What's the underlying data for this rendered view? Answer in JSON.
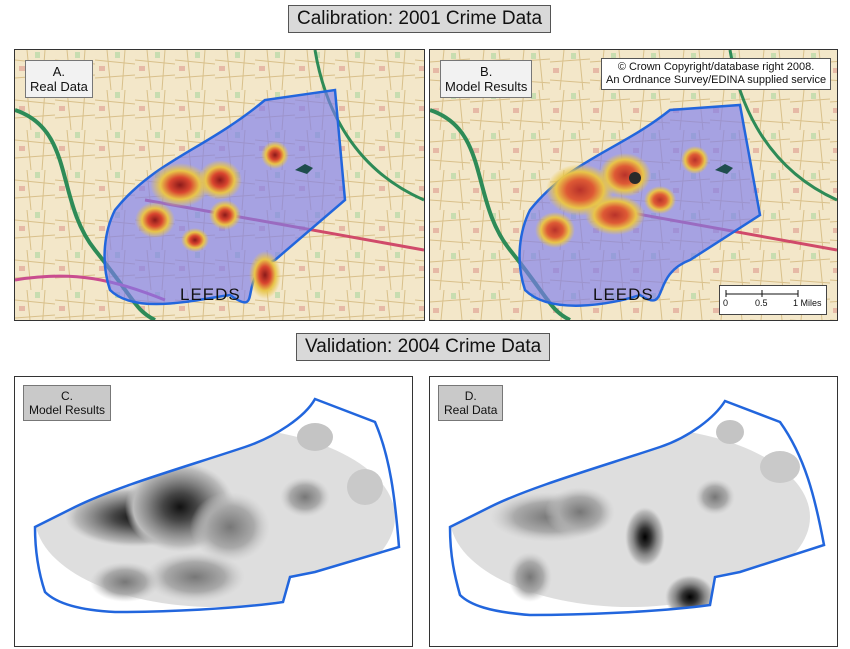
{
  "calibration": {
    "title": "Calibration: 2001 Crime Data",
    "panel_a": {
      "label_line1": "A.",
      "label_line2": "Real Data",
      "city_label": "LEEDS"
    },
    "panel_b": {
      "label_line1": "B.",
      "label_line2": "Model Results",
      "city_label": "LEEDS",
      "copyright_line1": "© Crown Copyright/database right 2008.",
      "copyright_line2": "An Ordnance Survey/EDINA supplied service",
      "scale_ticks": [
        "0",
        "0.5",
        "1 Miles"
      ]
    }
  },
  "validation": {
    "title": "Validation: 2004 Crime Data",
    "panel_c": {
      "label_line1": "C.",
      "label_line2": "Model Results"
    },
    "panel_d": {
      "label_line1": "D.",
      "label_line2": "Real Data"
    }
  },
  "colors": {
    "boundary": "#2266dd",
    "heat_high": "#c0392b",
    "heat_mid": "#e8d24a",
    "heat_low": "#6a6ae0",
    "map_base": "#f3e7c9",
    "road_green": "#2e8b57"
  }
}
